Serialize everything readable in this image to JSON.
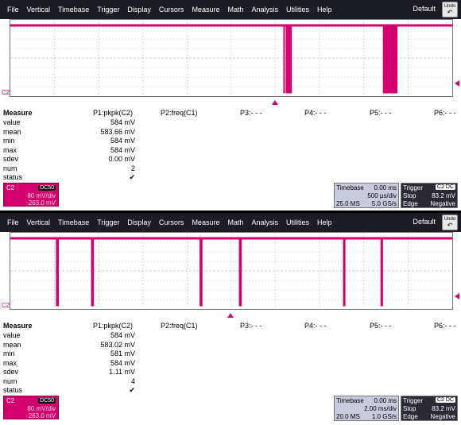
{
  "menu": {
    "items": [
      "File",
      "Vertical",
      "Timebase",
      "Trigger",
      "Display",
      "Cursors",
      "Measure",
      "Math",
      "Analysis",
      "Utilities",
      "Help"
    ],
    "default_label": "Default",
    "undo_label": "Undo"
  },
  "trace_color": "#d4006e",
  "panels": [
    {
      "channel_label": "C2",
      "trace_pulses": [
        0.6195,
        0.63,
        0.8595
      ],
      "trace_pulse_widths": [
        0.0018,
        0.014,
        0.033
      ],
      "trigger_position": 0.6,
      "measure_title": "Measure",
      "param_headers": [
        "P1:pkpk(C2)",
        "P2:freq(C1)",
        "P3:- - -",
        "P4:- - -",
        "P5:- - -",
        "P6:- - -"
      ],
      "rows": [
        {
          "label": "value",
          "value": "584 mV"
        },
        {
          "label": "mean",
          "value": "583.66 mV"
        },
        {
          "label": "min",
          "value": "584 mV"
        },
        {
          "label": "max",
          "value": "584 mV"
        },
        {
          "label": "sdev",
          "value": "0.00 mV"
        },
        {
          "label": "num",
          "value": "2"
        },
        {
          "label": "status",
          "value": "✔"
        }
      ],
      "channel_desc": {
        "name": "C2",
        "tag": "DC50",
        "volts_div": "80 mV/div",
        "offset": "-263.0 mV"
      },
      "timebase": {
        "label": "Timebase",
        "delay": "0.00 ms",
        "time_div": "500 µs/div",
        "samples": "25.0 MS",
        "rate": "5.0 GS/s"
      },
      "trigger": {
        "label": "Trigger",
        "tag": "C2 DC",
        "mode": "Stop",
        "level": "83.2 mV",
        "type": "Edge",
        "slope": "Negative"
      }
    },
    {
      "channel_label": "C2",
      "trace_pulses": [
        0.1065,
        0.186,
        0.4315,
        0.5205,
        0.7555,
        0.8405
      ],
      "trace_pulse_widths": [
        0.0065,
        0.0065,
        0.0065,
        0.0065,
        0.0055,
        0.0055
      ],
      "trigger_position": 0.5,
      "measure_title": "Measure",
      "param_headers": [
        "P1:pkpk(C2)",
        "P2:freq(C1)",
        "P3:- - -",
        "P4:- - -",
        "P5:- - -",
        "P6:- - -"
      ],
      "rows": [
        {
          "label": "value",
          "value": "584 mV"
        },
        {
          "label": "mean",
          "value": "583.02 mV"
        },
        {
          "label": "min",
          "value": "581 mV"
        },
        {
          "label": "max",
          "value": "584 mV"
        },
        {
          "label": "sdev",
          "value": "1.11 mV"
        },
        {
          "label": "num",
          "value": "4"
        },
        {
          "label": "status",
          "value": "✔"
        }
      ],
      "channel_desc": {
        "name": "C2",
        "tag": "DC50",
        "volts_div": "80 mV/div",
        "offset": "-263.0 mV"
      },
      "timebase": {
        "label": "Timebase",
        "delay": "0.00 ms",
        "time_div": "2.00 ms/div",
        "samples": "20.0 MS",
        "rate": "1.0 GS/s"
      },
      "trigger": {
        "label": "Trigger",
        "tag": "C2 DC",
        "mode": "Stop",
        "level": "83.2 mV",
        "type": "Edge",
        "slope": "Negative"
      }
    }
  ]
}
